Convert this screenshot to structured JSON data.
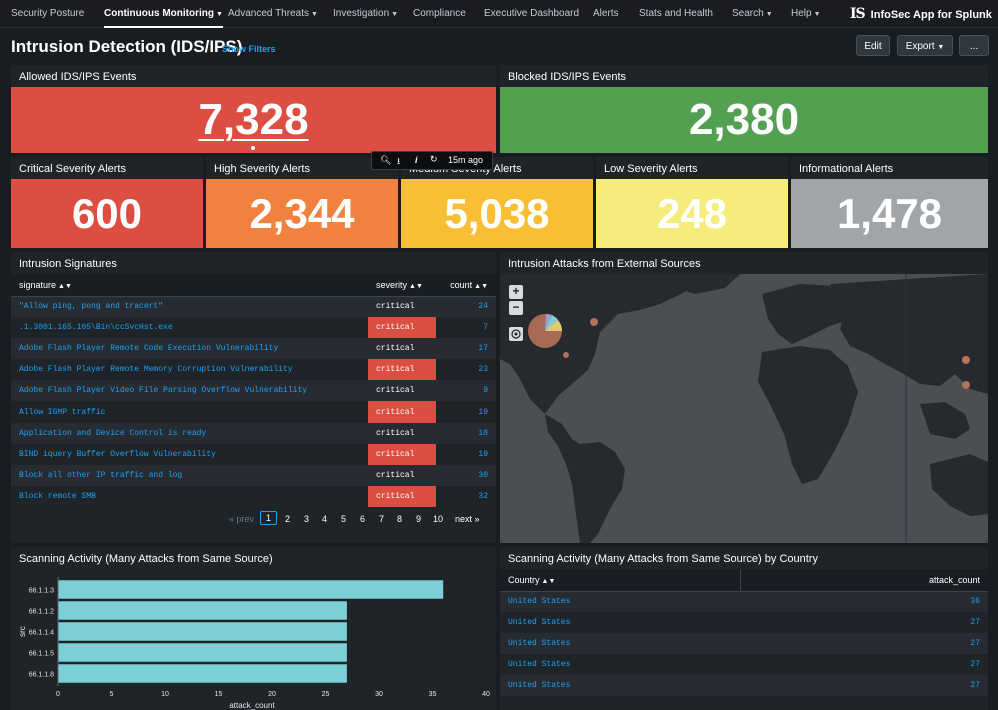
{
  "nav": {
    "items": [
      {
        "label": "Security Posture",
        "caret": false
      },
      {
        "label": "Continuous Monitoring",
        "caret": true,
        "active": true
      },
      {
        "label": "Advanced Threats",
        "caret": true
      },
      {
        "label": "Investigation",
        "caret": true
      },
      {
        "label": "Compliance",
        "caret": false
      },
      {
        "label": "Executive Dashboard",
        "caret": false
      },
      {
        "label": "Alerts",
        "caret": false
      },
      {
        "label": "Stats and Health",
        "caret": false
      },
      {
        "label": "Search",
        "caret": true
      },
      {
        "label": "Help",
        "caret": true
      }
    ],
    "brand_logo": "IS",
    "brand_name": "InfoSec App for Splunk"
  },
  "header": {
    "title": "Intrusion Detection (IDS/IPS)",
    "show_filters": "Show Filters",
    "edit_label": "Edit",
    "export_label": "Export",
    "more_label": "..."
  },
  "kpis_top": [
    {
      "title": "Allowed IDS/IPS Events",
      "value": "7,328",
      "color": "#dc4e41"
    },
    {
      "title": "Blocked IDS/IPS Events",
      "value": "2,380",
      "color": "#53a051"
    }
  ],
  "kpis_row2": [
    {
      "title": "Critical Severity Alerts",
      "value": "600",
      "color": "#dc4e41"
    },
    {
      "title": "High Severity Alerts",
      "value": "2,344",
      "color": "#f1813f"
    },
    {
      "title": "Medium Severity Alerts",
      "value": "5,038",
      "color": "#f8be34"
    },
    {
      "title": "Low Severity Alerts",
      "value": "248",
      "color": "#f5ec7b"
    },
    {
      "title": "Informational Alerts",
      "value": "1,478",
      "color": "#a2a5a8"
    }
  ],
  "panel_toolbar": {
    "time_ago": "15m ago"
  },
  "signatures": {
    "title": "Intrusion Signatures",
    "columns": [
      "signature",
      "severity",
      "count"
    ],
    "rows": [
      {
        "signature": "\"Allow ping, pong and tracert\"",
        "severity": "critical",
        "count": "24"
      },
      {
        "signature": ".1.3001.165.105\\Bin\\ccSvcHst.exe",
        "severity": "critical",
        "count": "7"
      },
      {
        "signature": "Adobe Flash Player Remote Code Execution Vulnerability",
        "severity": "critical",
        "count": "17"
      },
      {
        "signature": "Adobe Flash Player Remote Memory Corruption Vulnerability",
        "severity": "critical",
        "count": "23"
      },
      {
        "signature": "Adobe Flash Player Video File Parsing Overflow Vulnerability",
        "severity": "critical",
        "count": "9"
      },
      {
        "signature": "Allow IGMP traffic",
        "severity": "critical",
        "count": "19"
      },
      {
        "signature": "Application and Device Control is ready",
        "severity": "critical",
        "count": "18"
      },
      {
        "signature": "BIND iquery Buffer Overflow Vulnerability",
        "severity": "critical",
        "count": "19"
      },
      {
        "signature": "Block all other IP traffic and log",
        "severity": "critical",
        "count": "30"
      },
      {
        "signature": "Block remote SMB",
        "severity": "critical",
        "count": "32"
      }
    ],
    "pager": {
      "prev": "« prev",
      "pages": [
        "1",
        "2",
        "3",
        "4",
        "5",
        "6",
        "7",
        "8",
        "9",
        "10"
      ],
      "current": "1",
      "next": "next »"
    }
  },
  "map": {
    "title": "Intrusion Attacks from External Sources",
    "zoom_in": "+",
    "zoom_out": "−"
  },
  "scanning": {
    "title": "Scanning Activity (Many Attacks from Same Source)"
  },
  "chart_data": {
    "type": "bar",
    "orientation": "horizontal",
    "categories": [
      "66.1.1.3",
      "66.1.1.2",
      "66.1.1.4",
      "66.1.1.5",
      "66.1.1.8"
    ],
    "values": [
      36,
      27,
      27,
      27,
      27
    ],
    "xlabel": "attack_count",
    "ylabel": "src",
    "xlim": [
      0,
      40
    ],
    "xticks": [
      0,
      5,
      10,
      15,
      20,
      25,
      30,
      35,
      40
    ],
    "bar_color": "#7ad0d6",
    "grid": false
  },
  "by_country": {
    "title": "Scanning Activity (Many Attacks from Same Source) by Country",
    "columns": [
      "Country",
      "attack_count"
    ],
    "rows": [
      {
        "country": "United States",
        "count": "36"
      },
      {
        "country": "United States",
        "count": "27"
      },
      {
        "country": "United States",
        "count": "27"
      },
      {
        "country": "United States",
        "count": "27"
      },
      {
        "country": "United States",
        "count": "27"
      }
    ]
  }
}
